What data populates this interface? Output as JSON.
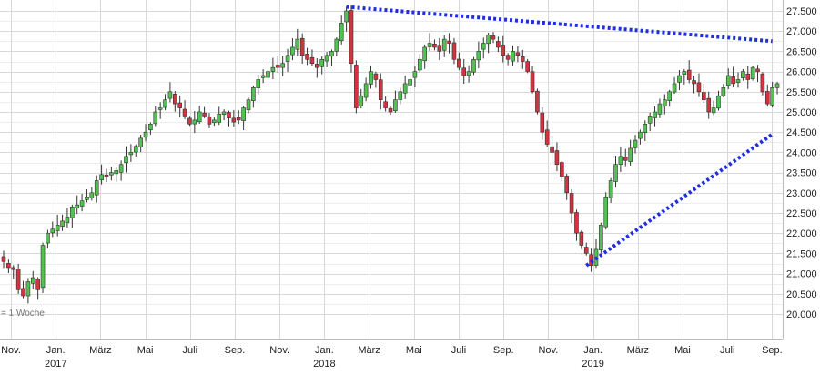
{
  "chart_data": {
    "type": "candlestick",
    "interval_label": "= 1 Woche",
    "x_axis": {
      "tick_labels": [
        "Nov.",
        "Jan.",
        "März",
        "Mai",
        "Juli",
        "Sep.",
        "Nov.",
        "Jan.",
        "März",
        "Mai",
        "Juli",
        "Sep.",
        "Nov.",
        "Jan.",
        "März",
        "Mai",
        "Juli",
        "Sep."
      ],
      "year_labels": [
        {
          "label": "2017",
          "under": 1
        },
        {
          "label": "2018",
          "under": 7
        },
        {
          "label": "2019",
          "under": 13
        }
      ]
    },
    "y_axis": {
      "range": [
        20000,
        27500
      ],
      "step": 500,
      "tick_labels": [
        "27.500",
        "27.000",
        "26.500",
        "26.000",
        "25.500",
        "25.000",
        "24.500",
        "24.000",
        "23.500",
        "23.000",
        "22.500",
        "22.000",
        "21.500",
        "21.000",
        "20.500",
        "20.000"
      ]
    },
    "grid": true,
    "colors": {
      "up": "#4fc24f",
      "down": "#d2343f",
      "trendline": "#1f2ee0",
      "grid": "#d8d8d8"
    },
    "closes": [
      21300,
      21150,
      21100,
      20600,
      20450,
      20800,
      20900,
      20600,
      21700,
      22000,
      22100,
      22200,
      22300,
      22400,
      22650,
      22700,
      22800,
      22900,
      23000,
      23300,
      23450,
      23400,
      23500,
      23550,
      23700,
      23900,
      24000,
      24150,
      24350,
      24500,
      24700,
      25000,
      25100,
      25300,
      25500,
      25200,
      25100,
      24900,
      24700,
      24800,
      25000,
      24900,
      24700,
      24800,
      24950,
      25000,
      24850,
      24750,
      24800,
      25100,
      25300,
      25600,
      25800,
      25900,
      26000,
      26100,
      26100,
      26200,
      26400,
      26600,
      26800,
      26400,
      26300,
      26200,
      26100,
      26300,
      26400,
      26500,
      26800,
      27200,
      27500,
      26200,
      25100,
      25400,
      25700,
      26000,
      25800,
      25300,
      25100,
      25000,
      25300,
      25500,
      25700,
      25800,
      26000,
      26300,
      26600,
      26700,
      26600,
      26500,
      26800,
      26700,
      26300,
      26100,
      25900,
      26000,
      26300,
      26500,
      26700,
      26900,
      26800,
      26600,
      26400,
      26300,
      26500,
      26400,
      26250,
      26000,
      25500,
      25000,
      24500,
      24200,
      24000,
      23700,
      23400,
      23000,
      22500,
      22000,
      21700,
      21500,
      21200,
      21600,
      22200,
      22900,
      23300,
      23700,
      23900,
      23800,
      24100,
      24300,
      24500,
      24700,
      24900,
      25000,
      25200,
      25300,
      25500,
      25700,
      25900,
      26000,
      25800,
      25700,
      25500,
      25300,
      25000,
      25100,
      25400,
      25600,
      25900,
      25700,
      25800,
      26000,
      25800,
      26100,
      26000,
      25500,
      25200,
      25600,
      25700
    ],
    "trendlines": [
      {
        "name": "resistance",
        "from": {
          "week": 70,
          "value": 27600
        },
        "to": {
          "week": 157,
          "value": 26750
        }
      },
      {
        "name": "support",
        "from": {
          "week": 119,
          "value": 21200
        },
        "to": {
          "week": 157,
          "value": 24450
        }
      }
    ]
  }
}
